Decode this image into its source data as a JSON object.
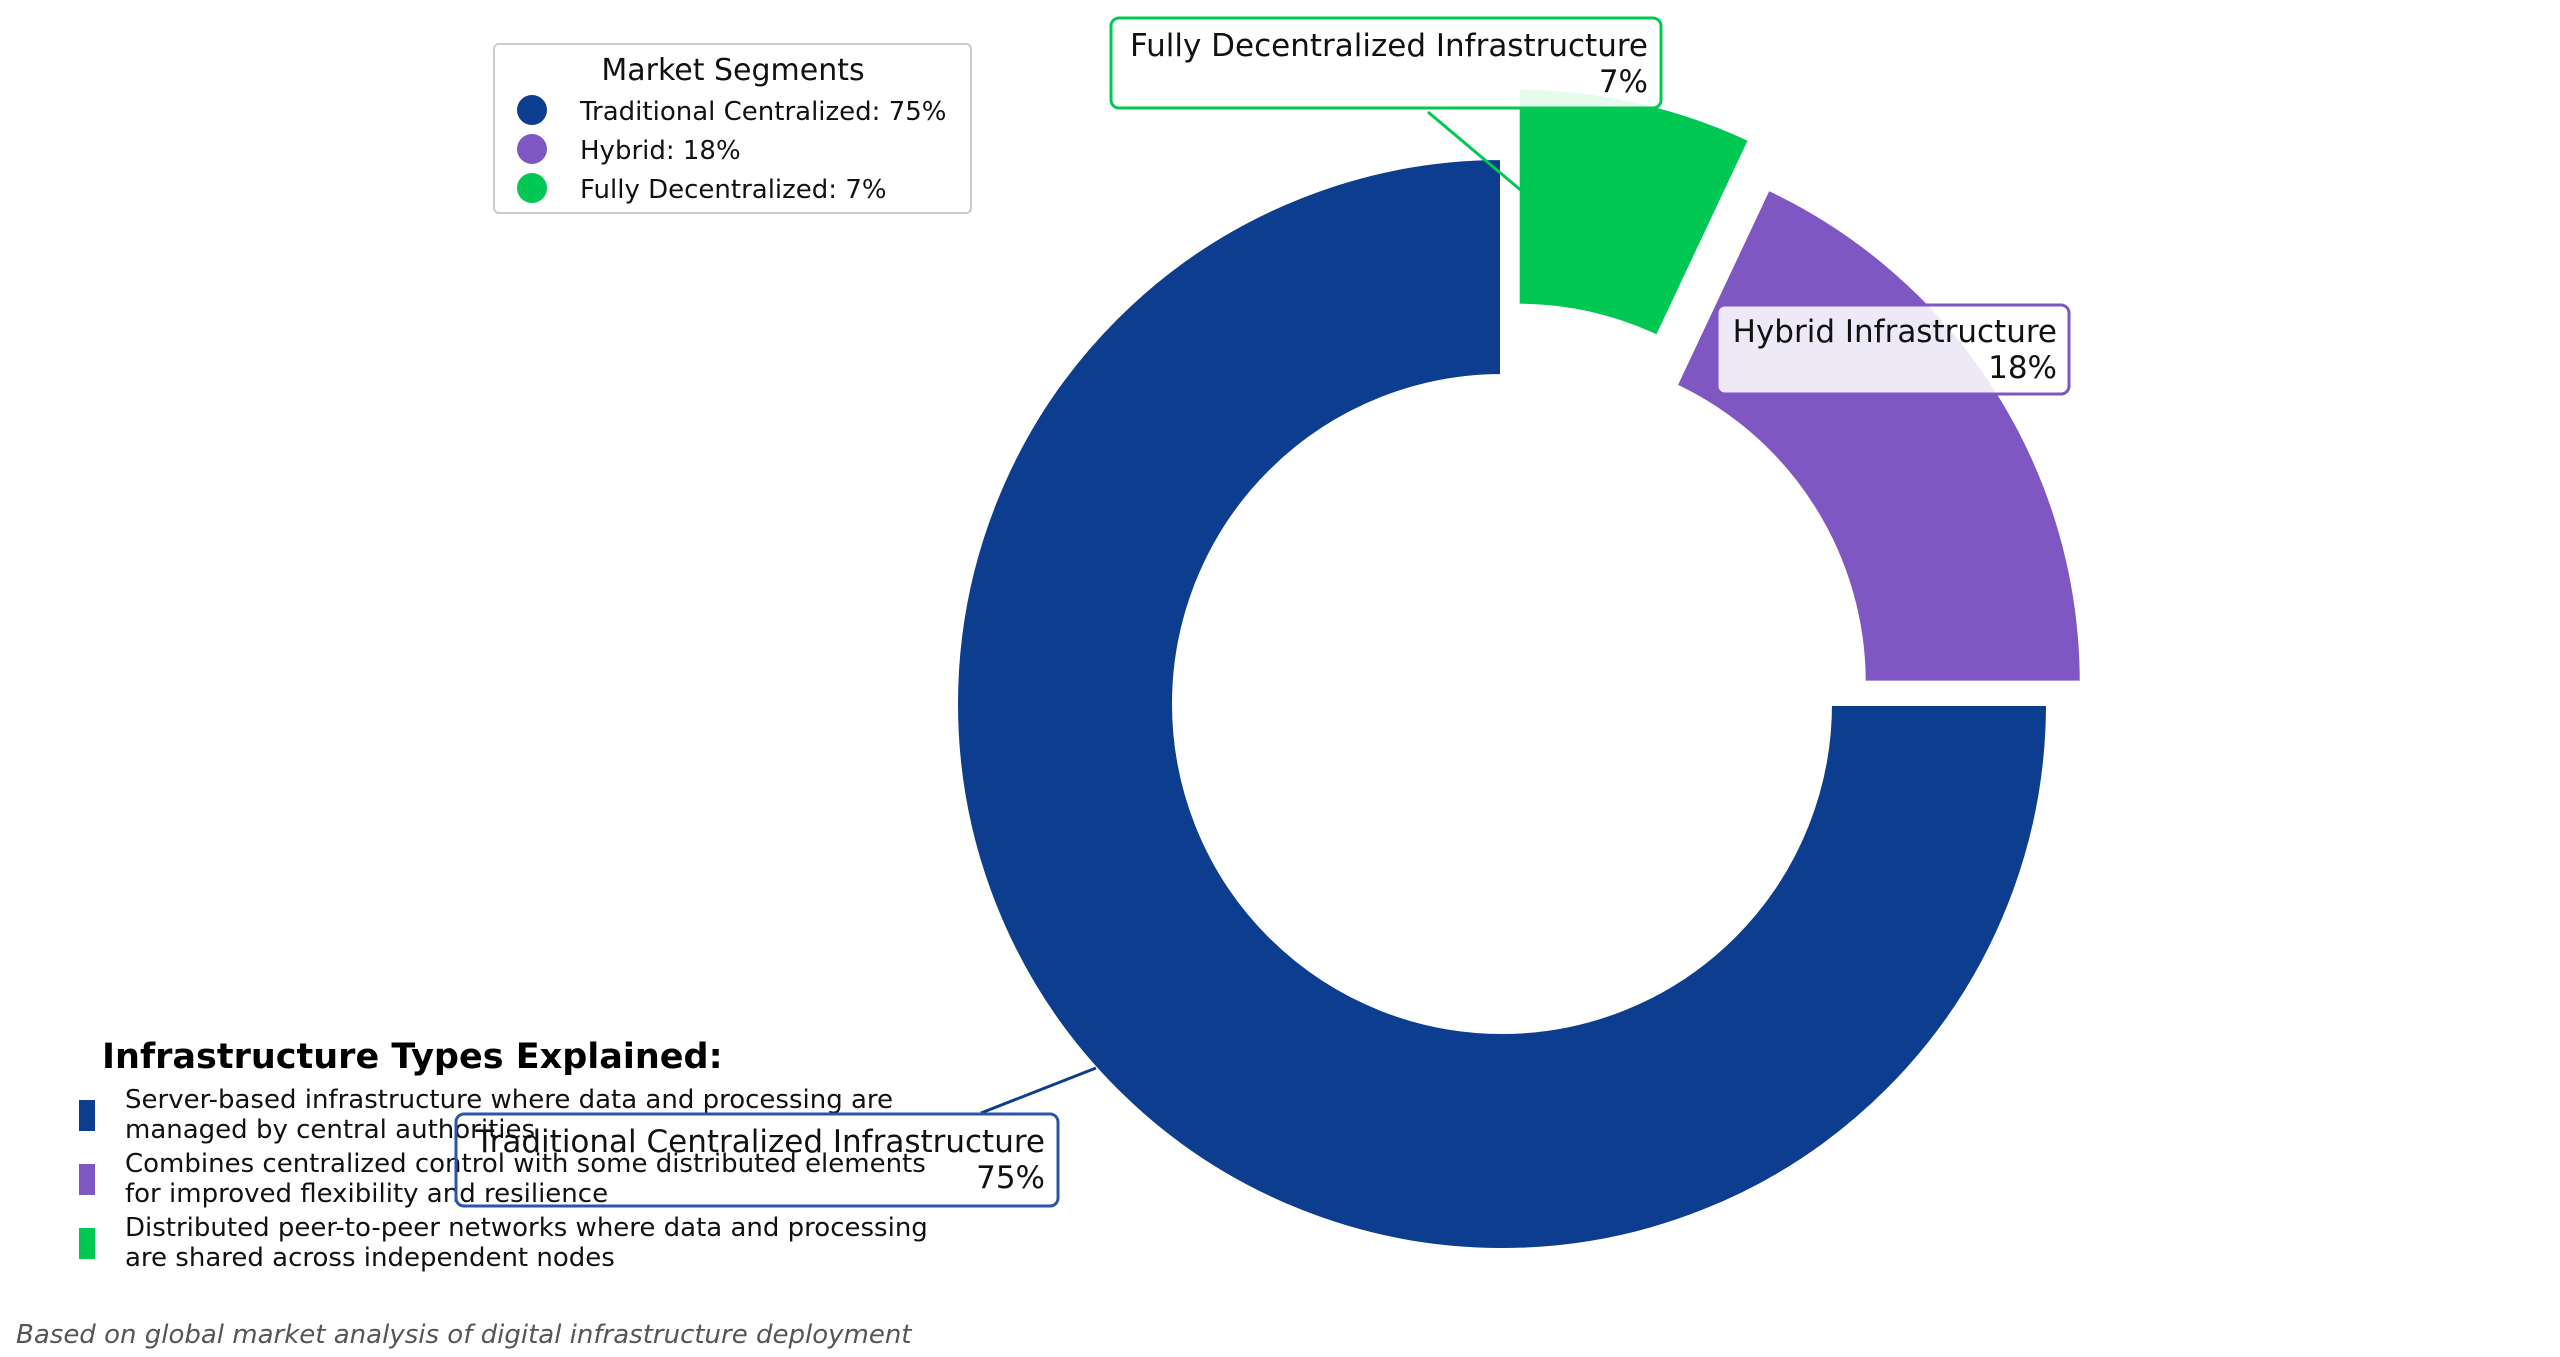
{
  "chart_data": {
    "type": "pie",
    "variant": "donut",
    "categories": [
      "Traditional Centralized",
      "Hybrid",
      "Fully Decentralized"
    ],
    "values": [
      75,
      18,
      7
    ],
    "colors": [
      "#0d3d8f",
      "#7e57c2",
      "#00c853"
    ],
    "legend": {
      "title": "Market Segments",
      "placement": "top-left",
      "entries": [
        "Traditional Centralized: 75%",
        "Hybrid: 18%",
        "Fully Decentralized: 7%"
      ]
    },
    "slice_labels": [
      {
        "name": "Traditional Centralized Infrastructure",
        "pct": "75%"
      },
      {
        "name": "Hybrid Infrastructure",
        "pct": "18%"
      },
      {
        "name": "Fully Decentralized Infrastructure",
        "pct": "7%"
      }
    ],
    "explanation": {
      "title": "Infrastructure Types Explained:",
      "items": [
        {
          "line1": "Server-based infrastructure where data and processing are",
          "line2": "managed by central authorities"
        },
        {
          "line1": "Combines centralized control with some distributed elements",
          "line2": "for improved flexibility and resilience"
        },
        {
          "line1": "Distributed peer-to-peer networks where data and processing",
          "line2": "are shared across independent nodes"
        }
      ]
    },
    "footnote": "Based on global market analysis of digital infrastructure deployment"
  }
}
